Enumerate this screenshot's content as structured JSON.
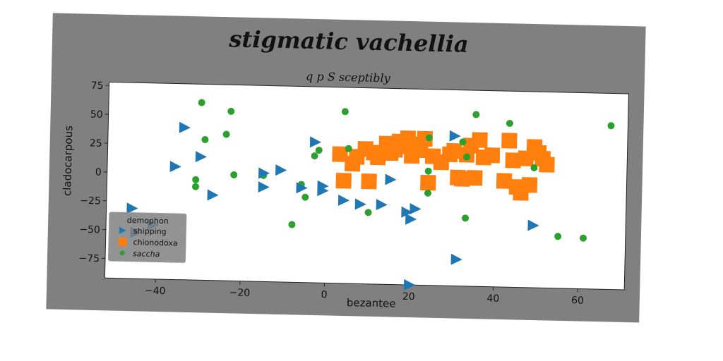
{
  "chart_data": {
    "type": "scatter",
    "title": "stigmatic vachellia",
    "subtitle": "q p S sceptibly",
    "xlabel": "bezantee",
    "ylabel": "cladocarpous",
    "xlim": [
      -52,
      71
    ],
    "ylim": [
      -92,
      78
    ],
    "xticks": [
      -40,
      -20,
      0,
      20,
      40,
      60
    ],
    "yticks": [
      75,
      50,
      25,
      0,
      -25,
      -50,
      -75
    ],
    "xtick_labels": [
      "−40",
      "−20",
      "0",
      "20",
      "40",
      "60"
    ],
    "ytick_labels": [
      "75",
      "50",
      "25",
      "0",
      "−25",
      "−50",
      "−75"
    ],
    "legend": {
      "title": "demophon",
      "placement": "lower-left"
    },
    "series": [
      {
        "name": "shipping",
        "marker": "triangle-right",
        "color": "#1f77b4",
        "points": [
          [
            -46,
            -31
          ],
          [
            -45,
            -52
          ],
          [
            -41,
            -45
          ],
          [
            -34,
            40
          ],
          [
            -36,
            6
          ],
          [
            -30,
            15
          ],
          [
            -27,
            -18
          ],
          [
            -15,
            -10
          ],
          [
            -15,
            2
          ],
          [
            -11,
            5
          ],
          [
            -6,
            -10
          ],
          [
            -3,
            30
          ],
          [
            -1,
            -12
          ],
          [
            -1,
            -8
          ],
          [
            4,
            -20
          ],
          [
            8,
            -23
          ],
          [
            13,
            -23
          ],
          [
            15,
            -1
          ],
          [
            19,
            -29
          ],
          [
            20,
            -35
          ],
          [
            20,
            -92
          ],
          [
            21,
            -26
          ],
          [
            30,
            38
          ],
          [
            31,
            -69
          ],
          [
            49,
            -38
          ]
        ]
      },
      {
        "name": "chionodoxa",
        "marker": "square",
        "color": "#ff7f0e",
        "points": [
          [
            3,
            20
          ],
          [
            4,
            -3
          ],
          [
            6,
            12
          ],
          [
            7,
            18
          ],
          [
            9,
            25
          ],
          [
            10,
            -3
          ],
          [
            11,
            22
          ],
          [
            12,
            18
          ],
          [
            14,
            30
          ],
          [
            15,
            22
          ],
          [
            16,
            25
          ],
          [
            17,
            32
          ],
          [
            18,
            28
          ],
          [
            19,
            35
          ],
          [
            20,
            20
          ],
          [
            21,
            30
          ],
          [
            22,
            25
          ],
          [
            23,
            35
          ],
          [
            24,
            -3
          ],
          [
            25,
            20
          ],
          [
            27,
            15
          ],
          [
            29,
            22
          ],
          [
            30,
            25
          ],
          [
            31,
            2
          ],
          [
            32,
            1
          ],
          [
            33,
            22
          ],
          [
            34,
            30
          ],
          [
            35,
            2
          ],
          [
            36,
            35
          ],
          [
            37,
            20
          ],
          [
            39,
            22
          ],
          [
            42,
            0
          ],
          [
            43,
            35
          ],
          [
            44,
            18
          ],
          [
            45,
            -5
          ],
          [
            46,
            -10
          ],
          [
            47,
            20
          ],
          [
            48,
            -3
          ],
          [
            49,
            30
          ],
          [
            50,
            25
          ],
          [
            51,
            20
          ],
          [
            52,
            15
          ]
        ]
      },
      {
        "name": "saccha",
        "marker": "circle",
        "color": "#2ca02c",
        "points": [
          [
            -30,
            62
          ],
          [
            -29,
            30
          ],
          [
            -31,
            -5
          ],
          [
            -31,
            -11
          ],
          [
            -24,
            35
          ],
          [
            -23,
            55
          ],
          [
            -22,
            0
          ],
          [
            -15,
            0
          ],
          [
            -8,
            -42
          ],
          [
            -6,
            -7
          ],
          [
            -5,
            -18
          ],
          [
            -3,
            18
          ],
          [
            -2,
            23
          ],
          [
            4,
            57
          ],
          [
            5,
            25
          ],
          [
            10,
            -30
          ],
          [
            24,
            36
          ],
          [
            24,
            7
          ],
          [
            24,
            -12
          ],
          [
            32,
            33
          ],
          [
            33,
            20
          ],
          [
            33,
            -33
          ],
          [
            35,
            57
          ],
          [
            43,
            50
          ],
          [
            49,
            12
          ],
          [
            55,
            -47
          ],
          [
            61,
            -48
          ],
          [
            67,
            50
          ]
        ]
      }
    ]
  }
}
